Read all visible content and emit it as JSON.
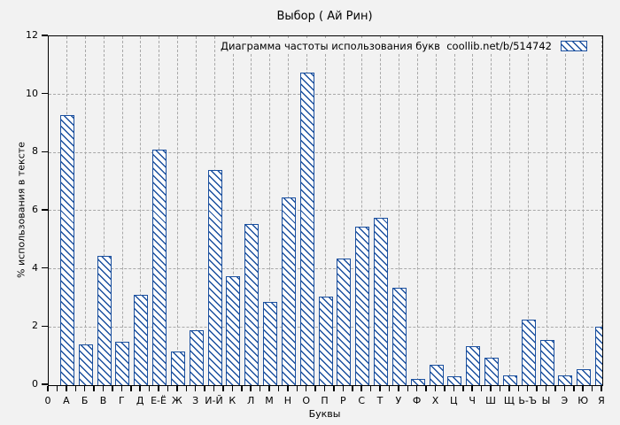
{
  "title": "Выбор ( Ай Рин)",
  "legend": {
    "label": "Диаграмма частоты использования букв  coollib.net/b/514742",
    "swatch": "hatched-bar-swatch"
  },
  "colors": {
    "bar_border": "#1a4f9e",
    "bar_fill": "#ffffff",
    "background": "#f2f2f2",
    "grid": "#a8a8a8",
    "axis": "#000000"
  },
  "chart_data": {
    "type": "bar",
    "title": "Выбор ( Ай Рин)",
    "xlabel": "Буквы",
    "ylabel": "% использования в тексте",
    "legend_label": "Диаграмма частоты использования букв  coollib.net/b/514742",
    "legend_position": "top-right-inside",
    "grid": true,
    "ylim": [
      0,
      12
    ],
    "yticks": [
      0,
      2,
      4,
      6,
      8,
      10,
      12
    ],
    "origin_tick_label": "0",
    "categories": [
      "А",
      "Б",
      "В",
      "Г",
      "Д",
      "Е-Ё",
      "Ж",
      "З",
      "И-Й",
      "К",
      "Л",
      "М",
      "Н",
      "О",
      "П",
      "Р",
      "С",
      "Т",
      "У",
      "Ф",
      "Х",
      "Ц",
      "Ч",
      "Ш",
      "Щ",
      "Ь-Ъ",
      "Ы",
      "Э",
      "Ю",
      "Я"
    ],
    "values": [
      9.3,
      1.4,
      4.45,
      1.5,
      3.1,
      8.1,
      1.15,
      1.9,
      7.4,
      3.75,
      5.55,
      2.85,
      6.45,
      10.75,
      3.05,
      4.35,
      5.45,
      5.75,
      3.35,
      0.2,
      0.7,
      0.3,
      1.35,
      0.95,
      0.35,
      2.25,
      1.55,
      0.35,
      0.55,
      2.0
    ]
  }
}
